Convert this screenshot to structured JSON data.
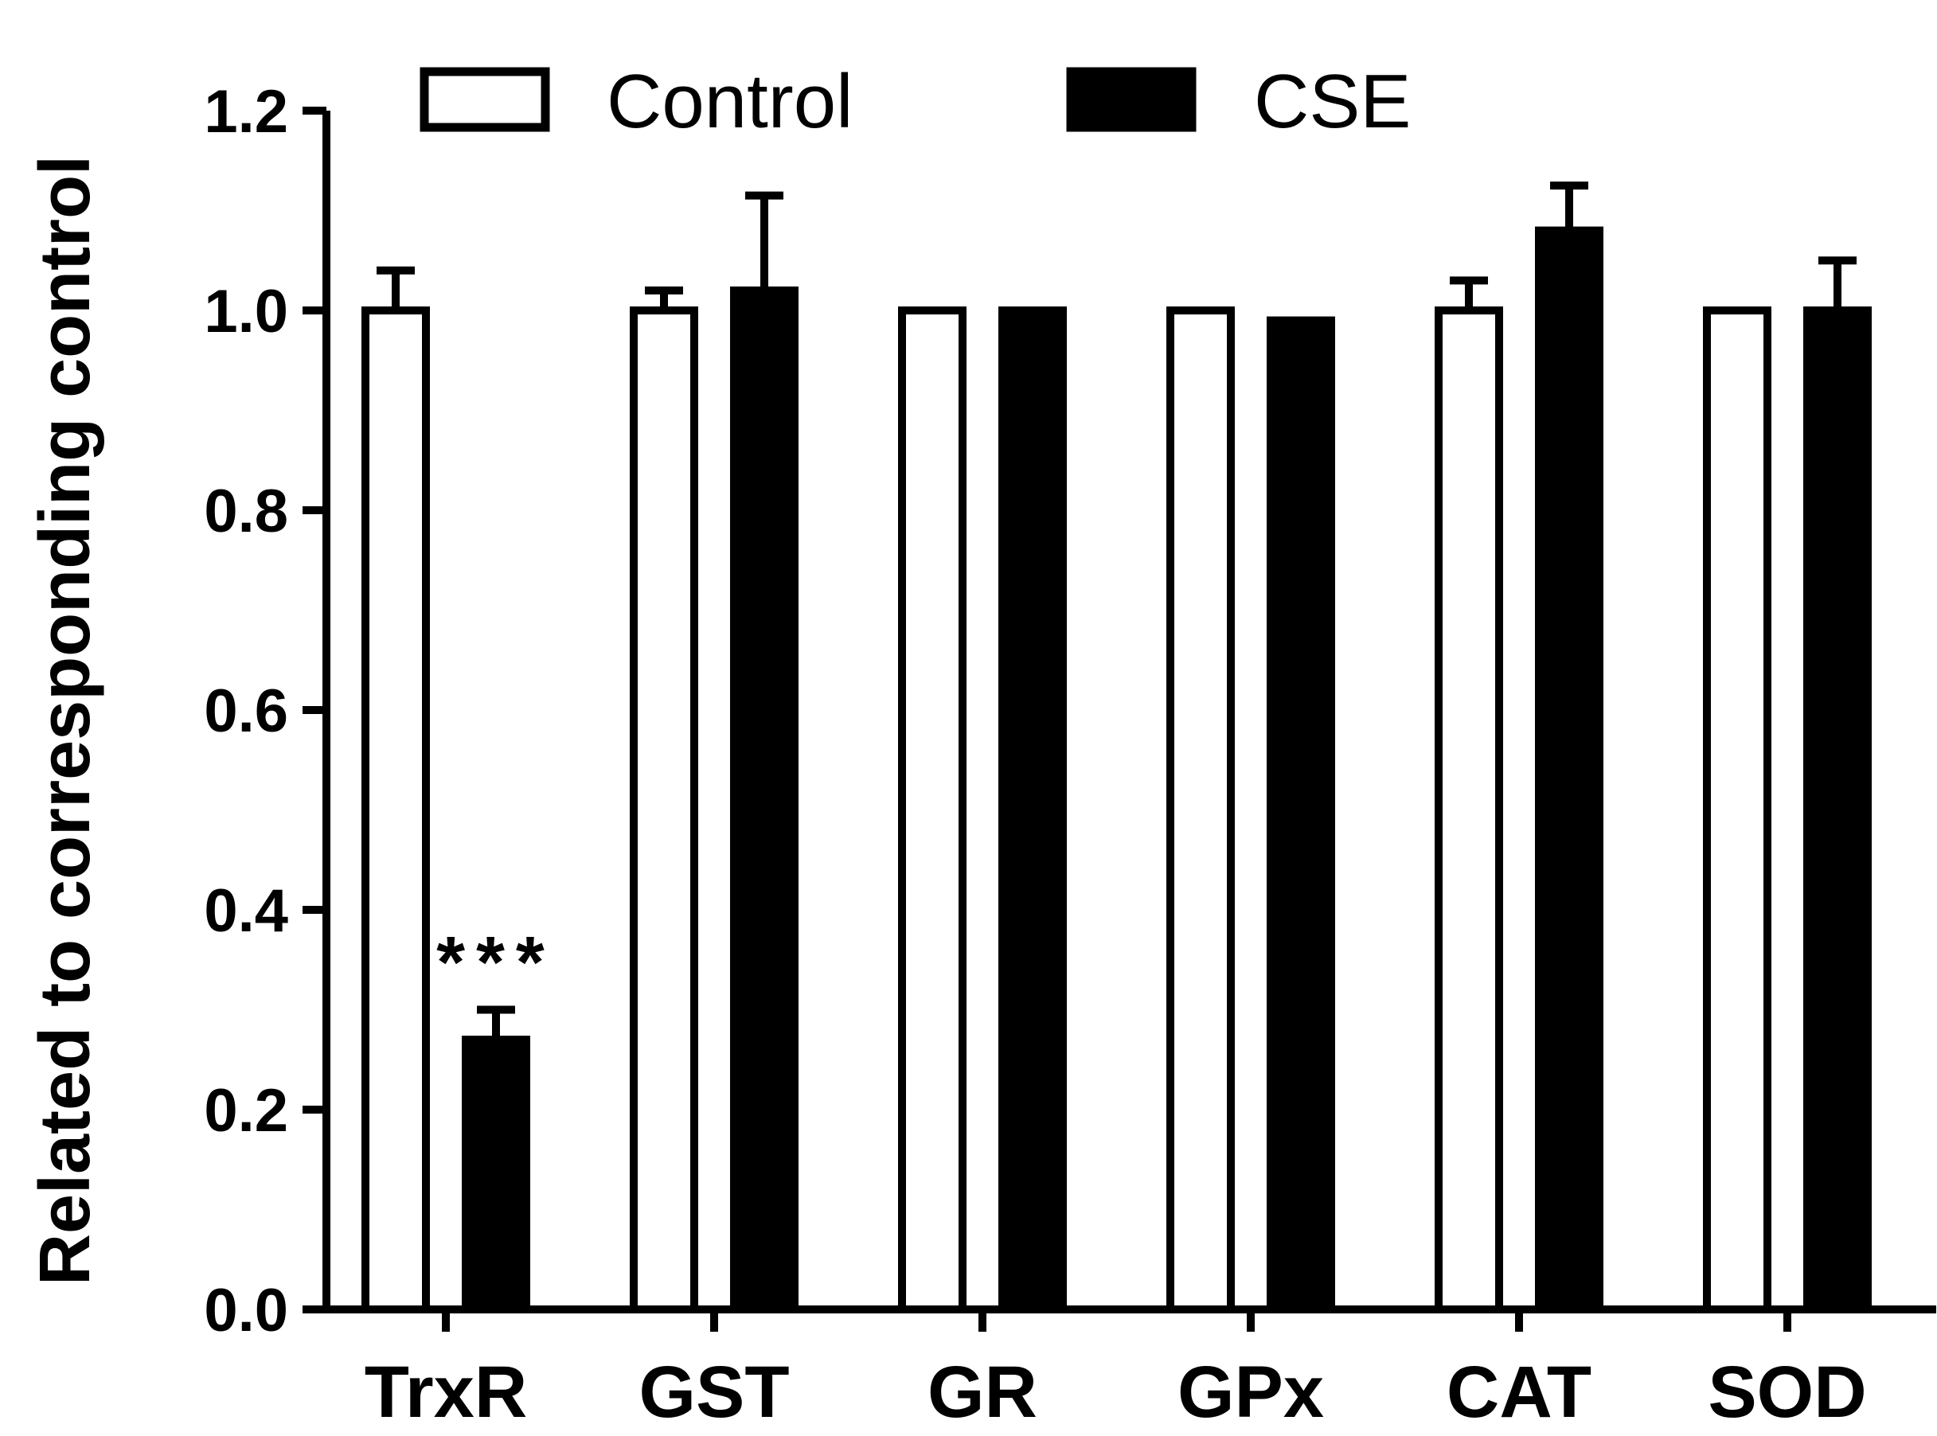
{
  "chart_data": {
    "type": "bar",
    "title": "",
    "xlabel": "",
    "ylabel": "Related to corresponding control",
    "ylim": [
      0,
      1.2
    ],
    "yticks": [
      "0.0",
      "0.2",
      "0.4",
      "0.6",
      "0.8",
      "1.0",
      "1.2"
    ],
    "categories": [
      "TrxR",
      "GST",
      "GR",
      "GPx",
      "CAT",
      "SOD"
    ],
    "series": [
      {
        "name": "Control",
        "fill": "#ffffff",
        "values": [
          1.0,
          1.0,
          1.0,
          1.0,
          1.0,
          1.0
        ],
        "errors": [
          0.04,
          0.02,
          0.0,
          0.0,
          0.03,
          0.0
        ]
      },
      {
        "name": "CSE",
        "fill": "#000000",
        "values": [
          0.27,
          1.02,
          1.0,
          0.99,
          1.08,
          1.0
        ],
        "errors": [
          0.03,
          0.095,
          0.0,
          0.0,
          0.045,
          0.05
        ]
      }
    ],
    "annotations": [
      {
        "category": "TrxR",
        "series": "CSE",
        "text": "***"
      }
    ],
    "legend": {
      "position": "top",
      "entries": [
        "Control",
        "CSE"
      ]
    }
  }
}
